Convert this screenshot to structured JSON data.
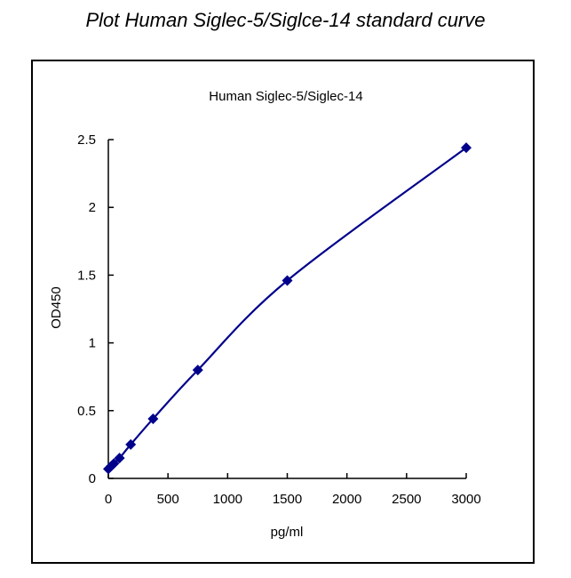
{
  "page": {
    "title": "Plot Human Siglec-5/Siglce-14 standard curve"
  },
  "colors": {
    "series": "#00008B",
    "axis": "#000000",
    "frame": "#000000",
    "background": "#FFFFFF"
  },
  "chart_data": {
    "type": "scatter",
    "title": "Human Siglec-5/Siglec-14",
    "xlabel": "pg/ml",
    "ylabel": "OD450",
    "xlim": [
      0,
      3000
    ],
    "ylim": [
      0,
      2.5
    ],
    "xticks": [
      0,
      500,
      1000,
      1500,
      2000,
      2500,
      3000
    ],
    "xtick_labels": [
      "0",
      "500",
      "1000",
      "1500",
      "2000",
      "2500",
      "3000"
    ],
    "yticks": [
      0,
      0.5,
      1,
      1.5,
      2,
      2.5
    ],
    "ytick_labels": [
      "0",
      "0.5",
      "1",
      "1.5",
      "2",
      "2.5"
    ],
    "grid": false,
    "legend": false,
    "marker": "diamond",
    "line": "smooth",
    "series": [
      {
        "name": "Human Siglec-5/Siglec-14",
        "x": [
          0,
          23.4,
          46.9,
          93.75,
          187.5,
          375,
          750,
          1500,
          3000
        ],
        "y": [
          0.07,
          0.09,
          0.11,
          0.15,
          0.25,
          0.44,
          0.8,
          1.46,
          2.44
        ]
      }
    ]
  }
}
